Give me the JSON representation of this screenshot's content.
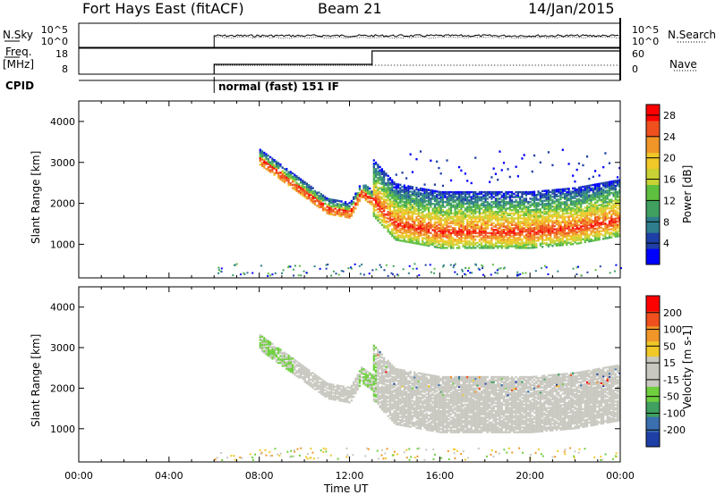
{
  "header": {
    "site": "Fort Hays East (fitACF)",
    "beam": "Beam 21",
    "date": "14/Jan/2015"
  },
  "top_panels": {
    "nsky": {
      "label": "N.Sky",
      "ticks": [
        "10^5",
        "10^0"
      ],
      "right_label": "N.Search",
      "right_ticks": [
        "10^5",
        "10^0"
      ]
    },
    "freq": {
      "label_line1": "Freq.",
      "label_line2": "[MHz]",
      "ticks": [
        "18",
        "8"
      ],
      "right_label": "Nave",
      "right_ticks": [
        "60",
        "0"
      ]
    },
    "cpid": {
      "label": "CPID",
      "mode_text": "normal (fast) 151 IF",
      "mode_start": "06:00"
    }
  },
  "colors": {
    "frame": "#000000",
    "power_scale": [
      "#0000ff",
      "#1e3fa5",
      "#2e7d8c",
      "#3fa060",
      "#5fbf3f",
      "#c8d234",
      "#f0c828",
      "#f09628",
      "#f0501e",
      "#ff0000"
    ],
    "velocity_scale": [
      "#1e3fa5",
      "#3a6fb0",
      "#3fa060",
      "#6fcf3f",
      "#c8c8c0",
      "#c8c8c0",
      "#f0c828",
      "#f09628",
      "#f0501e",
      "#ff0000"
    ]
  },
  "chart_data": [
    {
      "type": "heatmap",
      "panel": "power",
      "xlabel": "Time UT",
      "ylabel": "Slant Range [km]",
      "xlim": [
        "00:00",
        "24:00"
      ],
      "ylim": [
        180,
        4500
      ],
      "y_ticks": [
        "4000",
        "3000",
        "2000",
        "1000"
      ],
      "x_ticks": [
        "00:00",
        "04:00",
        "08:00",
        "12:00",
        "16:00",
        "20:00",
        "00:00"
      ],
      "colorbar": {
        "label": "Power [dB]",
        "ticks": [
          "28",
          "24",
          "20",
          "16",
          "12",
          "8",
          "4"
        ],
        "range": [
          0,
          30
        ]
      },
      "bands": [
        {
          "name": "echo_band",
          "x": [
            8.0,
            9.0,
            10.0,
            11.0,
            12.0,
            12.5,
            13.0,
            14.0,
            16.0,
            18.0,
            20.0,
            22.0,
            24.0
          ],
          "y_center": [
            3100,
            2700,
            2300,
            1900,
            1800,
            2300,
            2100,
            1500,
            1300,
            1300,
            1300,
            1400,
            1600
          ],
          "peak_power": 28
        }
      ]
    },
    {
      "type": "heatmap",
      "panel": "velocity",
      "xlabel": "Time UT",
      "ylabel": "Slant Range [km]",
      "xlim": [
        "00:00",
        "24:00"
      ],
      "ylim": [
        180,
        4500
      ],
      "y_ticks": [
        "4000",
        "3000",
        "2000",
        "1000"
      ],
      "x_ticks": [
        "00:00",
        "04:00",
        "08:00",
        "12:00",
        "16:00",
        "20:00",
        "00:00"
      ],
      "colorbar": {
        "label": "Velocity [m s-1]",
        "ticks": [
          "200",
          "100",
          "50",
          "15",
          "-15",
          "-50",
          "-100",
          "-200"
        ],
        "range": [
          -250,
          250
        ]
      }
    }
  ]
}
